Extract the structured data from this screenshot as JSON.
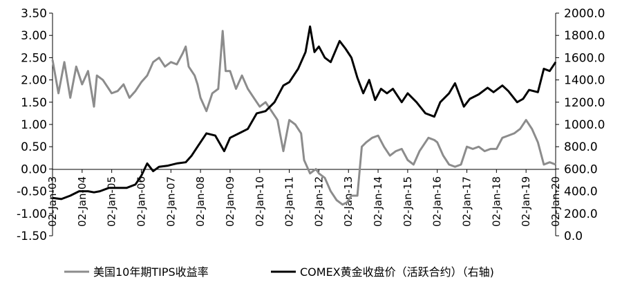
{
  "chart_data": {
    "type": "line",
    "title": "",
    "legend_position": "bottom",
    "grid": false,
    "y_left": {
      "min": -1.5,
      "max": 3.5,
      "ticks": [
        "3.50",
        "3.00",
        "2.50",
        "2.00",
        "1.50",
        "1.00",
        "0.50",
        "0.00",
        "-0.50",
        "-1.00",
        "-1.50"
      ]
    },
    "y_right": {
      "min": 0,
      "max": 2000,
      "ticks": [
        "2000.0",
        "1800.0",
        "1600.0",
        "1400.0",
        "1200.0",
        "1000.0",
        "800.0",
        "600.0",
        "400.0",
        "200.0",
        "0.0"
      ]
    },
    "x": {
      "min": 2003.0,
      "max": 2020.0,
      "ticks": [
        "02-Jan-03",
        "02-Jan-04",
        "02-Jan-05",
        "02-Jan-06",
        "02-Jan-07",
        "02-Jan-08",
        "02-Jan-09",
        "02-Jan-10",
        "02-Jan-11",
        "02-Jan-12",
        "02-Jan-13",
        "02-Jan-14",
        "02-Jan-15",
        "02-Jan-16",
        "02-Jan-17",
        "02-Jan-18",
        "02-Jan-19",
        "02-Jan-20"
      ]
    },
    "series": [
      {
        "name": "美国10年期TIPS收益率",
        "axis": "left",
        "color": "#8c8c8c",
        "points": [
          [
            2003.0,
            2.45
          ],
          [
            2003.2,
            1.7
          ],
          [
            2003.4,
            2.4
          ],
          [
            2003.6,
            1.6
          ],
          [
            2003.8,
            2.3
          ],
          [
            2004.0,
            1.9
          ],
          [
            2004.2,
            2.2
          ],
          [
            2004.4,
            1.4
          ],
          [
            2004.5,
            2.1
          ],
          [
            2004.7,
            2.0
          ],
          [
            2004.9,
            1.8
          ],
          [
            2005.0,
            1.7
          ],
          [
            2005.2,
            1.75
          ],
          [
            2005.4,
            1.9
          ],
          [
            2005.6,
            1.6
          ],
          [
            2005.8,
            1.75
          ],
          [
            2006.0,
            1.95
          ],
          [
            2006.2,
            2.1
          ],
          [
            2006.4,
            2.4
          ],
          [
            2006.6,
            2.5
          ],
          [
            2006.8,
            2.3
          ],
          [
            2007.0,
            2.4
          ],
          [
            2007.2,
            2.35
          ],
          [
            2007.4,
            2.6
          ],
          [
            2007.5,
            2.75
          ],
          [
            2007.6,
            2.3
          ],
          [
            2007.8,
            2.1
          ],
          [
            2007.9,
            1.9
          ],
          [
            2008.0,
            1.6
          ],
          [
            2008.2,
            1.3
          ],
          [
            2008.4,
            1.7
          ],
          [
            2008.6,
            1.8
          ],
          [
            2008.75,
            3.1
          ],
          [
            2008.85,
            2.2
          ],
          [
            2009.0,
            2.2
          ],
          [
            2009.2,
            1.8
          ],
          [
            2009.4,
            2.1
          ],
          [
            2009.6,
            1.8
          ],
          [
            2009.8,
            1.6
          ],
          [
            2010.0,
            1.4
          ],
          [
            2010.2,
            1.5
          ],
          [
            2010.4,
            1.3
          ],
          [
            2010.6,
            1.1
          ],
          [
            2010.8,
            0.4
          ],
          [
            2011.0,
            1.1
          ],
          [
            2011.2,
            1.0
          ],
          [
            2011.4,
            0.8
          ],
          [
            2011.5,
            0.2
          ],
          [
            2011.7,
            -0.1
          ],
          [
            2011.9,
            0.0
          ],
          [
            2012.0,
            -0.1
          ],
          [
            2012.2,
            -0.2
          ],
          [
            2012.4,
            -0.5
          ],
          [
            2012.6,
            -0.7
          ],
          [
            2012.8,
            -0.8
          ],
          [
            2012.95,
            -0.75
          ],
          [
            2013.1,
            -0.6
          ],
          [
            2013.3,
            -0.6
          ],
          [
            2013.45,
            0.5
          ],
          [
            2013.6,
            0.6
          ],
          [
            2013.8,
            0.7
          ],
          [
            2014.0,
            0.75
          ],
          [
            2014.2,
            0.5
          ],
          [
            2014.4,
            0.3
          ],
          [
            2014.6,
            0.4
          ],
          [
            2014.8,
            0.45
          ],
          [
            2015.0,
            0.2
          ],
          [
            2015.2,
            0.1
          ],
          [
            2015.4,
            0.4
          ],
          [
            2015.5,
            0.5
          ],
          [
            2015.7,
            0.7
          ],
          [
            2015.9,
            0.65
          ],
          [
            2016.0,
            0.6
          ],
          [
            2016.2,
            0.3
          ],
          [
            2016.4,
            0.1
          ],
          [
            2016.6,
            0.05
          ],
          [
            2016.8,
            0.1
          ],
          [
            2017.0,
            0.5
          ],
          [
            2017.2,
            0.45
          ],
          [
            2017.4,
            0.5
          ],
          [
            2017.6,
            0.4
          ],
          [
            2017.8,
            0.45
          ],
          [
            2018.0,
            0.45
          ],
          [
            2018.2,
            0.7
          ],
          [
            2018.4,
            0.75
          ],
          [
            2018.6,
            0.8
          ],
          [
            2018.8,
            0.9
          ],
          [
            2019.0,
            1.1
          ],
          [
            2019.2,
            0.9
          ],
          [
            2019.4,
            0.6
          ],
          [
            2019.6,
            0.1
          ],
          [
            2019.8,
            0.15
          ],
          [
            2020.0,
            0.1
          ]
        ]
      },
      {
        "name": "COMEX黄金收盘价（活跃合约）（右轴)",
        "axis": "right",
        "color": "#000000",
        "points": [
          [
            2003.0,
            340
          ],
          [
            2003.3,
            330
          ],
          [
            2003.6,
            360
          ],
          [
            2003.9,
            400
          ],
          [
            2004.2,
            400
          ],
          [
            2004.4,
            390
          ],
          [
            2004.6,
            400
          ],
          [
            2004.9,
            430
          ],
          [
            2005.2,
            430
          ],
          [
            2005.5,
            430
          ],
          [
            2005.8,
            460
          ],
          [
            2006.0,
            540
          ],
          [
            2006.2,
            650
          ],
          [
            2006.4,
            580
          ],
          [
            2006.6,
            620
          ],
          [
            2006.9,
            630
          ],
          [
            2007.2,
            650
          ],
          [
            2007.5,
            660
          ],
          [
            2007.7,
            720
          ],
          [
            2007.9,
            800
          ],
          [
            2008.2,
            920
          ],
          [
            2008.5,
            900
          ],
          [
            2008.8,
            760
          ],
          [
            2009.0,
            880
          ],
          [
            2009.3,
            920
          ],
          [
            2009.6,
            960
          ],
          [
            2009.9,
            1100
          ],
          [
            2010.2,
            1120
          ],
          [
            2010.5,
            1200
          ],
          [
            2010.8,
            1350
          ],
          [
            2011.0,
            1380
          ],
          [
            2011.3,
            1500
          ],
          [
            2011.55,
            1650
          ],
          [
            2011.7,
            1880
          ],
          [
            2011.85,
            1650
          ],
          [
            2012.0,
            1700
          ],
          [
            2012.2,
            1600
          ],
          [
            2012.4,
            1560
          ],
          [
            2012.7,
            1750
          ],
          [
            2012.9,
            1680
          ],
          [
            2013.1,
            1600
          ],
          [
            2013.3,
            1420
          ],
          [
            2013.5,
            1280
          ],
          [
            2013.7,
            1400
          ],
          [
            2013.9,
            1220
          ],
          [
            2014.1,
            1320
          ],
          [
            2014.3,
            1280
          ],
          [
            2014.5,
            1320
          ],
          [
            2014.8,
            1200
          ],
          [
            2015.0,
            1280
          ],
          [
            2015.3,
            1200
          ],
          [
            2015.6,
            1100
          ],
          [
            2015.9,
            1070
          ],
          [
            2016.1,
            1200
          ],
          [
            2016.4,
            1280
          ],
          [
            2016.6,
            1370
          ],
          [
            2016.9,
            1160
          ],
          [
            2017.1,
            1230
          ],
          [
            2017.4,
            1270
          ],
          [
            2017.7,
            1330
          ],
          [
            2017.9,
            1290
          ],
          [
            2018.2,
            1350
          ],
          [
            2018.4,
            1300
          ],
          [
            2018.7,
            1200
          ],
          [
            2018.9,
            1230
          ],
          [
            2019.1,
            1310
          ],
          [
            2019.4,
            1290
          ],
          [
            2019.6,
            1500
          ],
          [
            2019.8,
            1480
          ],
          [
            2020.0,
            1560
          ]
        ]
      }
    ]
  }
}
